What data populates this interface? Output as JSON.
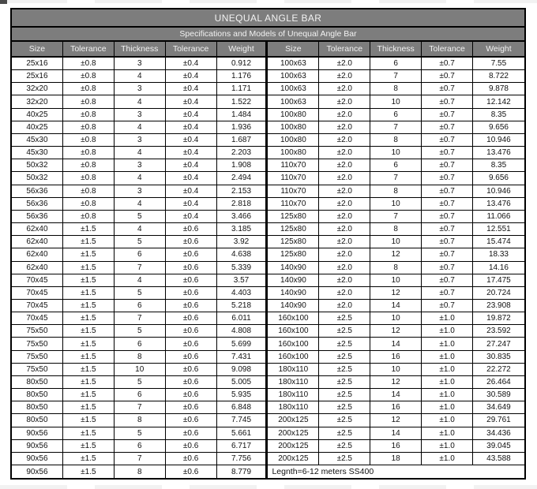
{
  "page": {
    "title": "UNEQUAL ANGLE BAR",
    "subtitle": "Specifications and Models of Unequal Angle Bar",
    "note": "Legnth=6-12 meters SS400"
  },
  "columns": [
    "Size",
    "Tolerance",
    "Thickness",
    "Tolerance",
    "Weight"
  ],
  "colors": {
    "header_bg": "#7d7d7d",
    "header_text": "#f2f2f2",
    "border": "#000000"
  },
  "left_rows": [
    [
      "25x16",
      "±0.8",
      "3",
      "±0.4",
      "0.912"
    ],
    [
      "25x16",
      "±0.8",
      "4",
      "±0.4",
      "1.176"
    ],
    [
      "32x20",
      "±0.8",
      "3",
      "±0.4",
      "1.171"
    ],
    [
      "32x20",
      "±0.8",
      "4",
      "±0.4",
      "1.522"
    ],
    [
      "40x25",
      "±0.8",
      "3",
      "±0.4",
      "1.484"
    ],
    [
      "40x25",
      "±0.8",
      "4",
      "±0.4",
      "1.936"
    ],
    [
      "45x30",
      "±0.8",
      "3",
      "±0.4",
      "1.687"
    ],
    [
      "45x30",
      "±0.8",
      "4",
      "±0.4",
      "2.203"
    ],
    [
      "50x32",
      "±0.8",
      "3",
      "±0.4",
      "1.908"
    ],
    [
      "50x32",
      "±0.8",
      "4",
      "±0.4",
      "2.494"
    ],
    [
      "56x36",
      "±0.8",
      "3",
      "±0.4",
      "2.153"
    ],
    [
      "56x36",
      "±0.8",
      "4",
      "±0.4",
      "2.818"
    ],
    [
      "56x36",
      "±0.8",
      "5",
      "±0.4",
      "3.466"
    ],
    [
      "62x40",
      "±1.5",
      "4",
      "±0.6",
      "3.185"
    ],
    [
      "62x40",
      "±1.5",
      "5",
      "±0.6",
      "3.92"
    ],
    [
      "62x40",
      "±1.5",
      "6",
      "±0.6",
      "4.638"
    ],
    [
      "62x40",
      "±1.5",
      "7",
      "±0.6",
      "5.339"
    ],
    [
      "70x45",
      "±1.5",
      "4",
      "±0.6",
      "3.57"
    ],
    [
      "70x45",
      "±1.5",
      "5",
      "±0.6",
      "4.403"
    ],
    [
      "70x45",
      "±1.5",
      "6",
      "±0.6",
      "5.218"
    ],
    [
      "70x45",
      "±1.5",
      "7",
      "±0.6",
      "6.011"
    ],
    [
      "75x50",
      "±1.5",
      "5",
      "±0.6",
      "4.808"
    ],
    [
      "75x50",
      "±1.5",
      "6",
      "±0.6",
      "5.699"
    ],
    [
      "75x50",
      "±1.5",
      "8",
      "±0.6",
      "7.431"
    ],
    [
      "75x50",
      "±1.5",
      "10",
      "±0.6",
      "9.098"
    ],
    [
      "80x50",
      "±1.5",
      "5",
      "±0.6",
      "5.005"
    ],
    [
      "80x50",
      "±1.5",
      "6",
      "±0.6",
      "5.935"
    ],
    [
      "80x50",
      "±1.5",
      "7",
      "±0.6",
      "6.848"
    ],
    [
      "80x50",
      "±1.5",
      "8",
      "±0.6",
      "7.745"
    ],
    [
      "90x56",
      "±1.5",
      "5",
      "±0.6",
      "5.661"
    ],
    [
      "90x56",
      "±1.5",
      "6",
      "±0.6",
      "6.717"
    ],
    [
      "90x56",
      "±1.5",
      "7",
      "±0.6",
      "7.756"
    ],
    [
      "90x56",
      "±1.5",
      "8",
      "±0.6",
      "8.779"
    ]
  ],
  "right_rows": [
    [
      "100x63",
      "±2.0",
      "6",
      "±0.7",
      "7.55"
    ],
    [
      "100x63",
      "±2.0",
      "7",
      "±0.7",
      "8.722"
    ],
    [
      "100x63",
      "±2.0",
      "8",
      "±0.7",
      "9.878"
    ],
    [
      "100x63",
      "±2.0",
      "10",
      "±0.7",
      "12.142"
    ],
    [
      "100x80",
      "±2.0",
      "6",
      "±0.7",
      "8.35"
    ],
    [
      "100x80",
      "±2.0",
      "7",
      "±0.7",
      "9.656"
    ],
    [
      "100x80",
      "±2.0",
      "8",
      "±0.7",
      "10.946"
    ],
    [
      "100x80",
      "±2.0",
      "10",
      "±0.7",
      "13.476"
    ],
    [
      "110x70",
      "±2.0",
      "6",
      "±0.7",
      "8.35"
    ],
    [
      "110x70",
      "±2.0",
      "7",
      "±0.7",
      "9.656"
    ],
    [
      "110x70",
      "±2.0",
      "8",
      "±0.7",
      "10.946"
    ],
    [
      "110x70",
      "±2.0",
      "10",
      "±0.7",
      "13.476"
    ],
    [
      "125x80",
      "±2.0",
      "7",
      "±0.7",
      "11.066"
    ],
    [
      "125x80",
      "±2.0",
      "8",
      "±0.7",
      "12.551"
    ],
    [
      "125x80",
      "±2.0",
      "10",
      "±0.7",
      "15.474"
    ],
    [
      "125x80",
      "±2.0",
      "12",
      "±0.7",
      "18.33"
    ],
    [
      "140x90",
      "±2.0",
      "8",
      "±0.7",
      "14.16"
    ],
    [
      "140x90",
      "±2.0",
      "10",
      "±0.7",
      "17.475"
    ],
    [
      "140x90",
      "±2.0",
      "12",
      "±0.7",
      "20.724"
    ],
    [
      "140x90",
      "±2.0",
      "14",
      "±0.7",
      "23.908"
    ],
    [
      "160x100",
      "±2.5",
      "10",
      "±1.0",
      "19.872"
    ],
    [
      "160x100",
      "±2.5",
      "12",
      "±1.0",
      "23.592"
    ],
    [
      "160x100",
      "±2.5",
      "14",
      "±1.0",
      "27.247"
    ],
    [
      "160x100",
      "±2.5",
      "16",
      "±1.0",
      "30.835"
    ],
    [
      "180x110",
      "±2.5",
      "10",
      "±1.0",
      "22.272"
    ],
    [
      "180x110",
      "±2.5",
      "12",
      "±1.0",
      "26.464"
    ],
    [
      "180x110",
      "±2.5",
      "14",
      "±1.0",
      "30.589"
    ],
    [
      "180x110",
      "±2.5",
      "16",
      "±1.0",
      "34.649"
    ],
    [
      "200x125",
      "±2.5",
      "12",
      "±1.0",
      "29.761"
    ],
    [
      "200x125",
      "±2.5",
      "14",
      "±1.0",
      "34.436"
    ],
    [
      "200x125",
      "±2.5",
      "16",
      "±1.0",
      "39.045"
    ],
    [
      "200x125",
      "±2.5",
      "18",
      "±1.0",
      "43.588"
    ]
  ]
}
